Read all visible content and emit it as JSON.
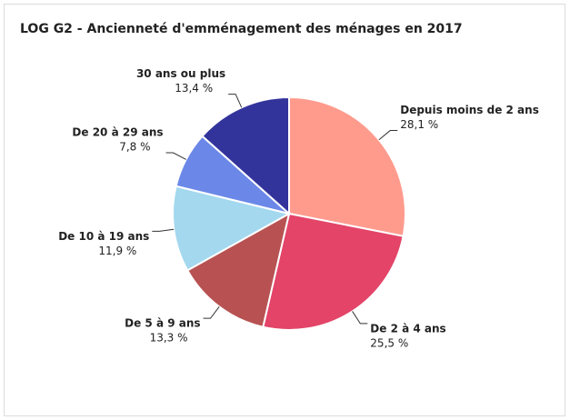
{
  "chart_data": {
    "type": "pie",
    "title": "LOG G2 - Ancienneté d'emménagement des ménages en 2017",
    "categories": [
      "Depuis moins de 2 ans",
      "De 2 à 4 ans",
      "De 5 à 9 ans",
      "De 10 à 19 ans",
      "De 20 à 29 ans",
      "30 ans ou plus"
    ],
    "values": [
      28.1,
      25.5,
      13.3,
      11.9,
      7.8,
      13.4
    ],
    "value_labels": [
      "28,1 %",
      "25,5 %",
      "13,3 %",
      "11,9 %",
      "7,8 %",
      "13,4 %"
    ],
    "colors": [
      "#ff9b8d",
      "#e34468",
      "#b85252",
      "#a3d8ef",
      "#6b88e8",
      "#33349b"
    ]
  }
}
